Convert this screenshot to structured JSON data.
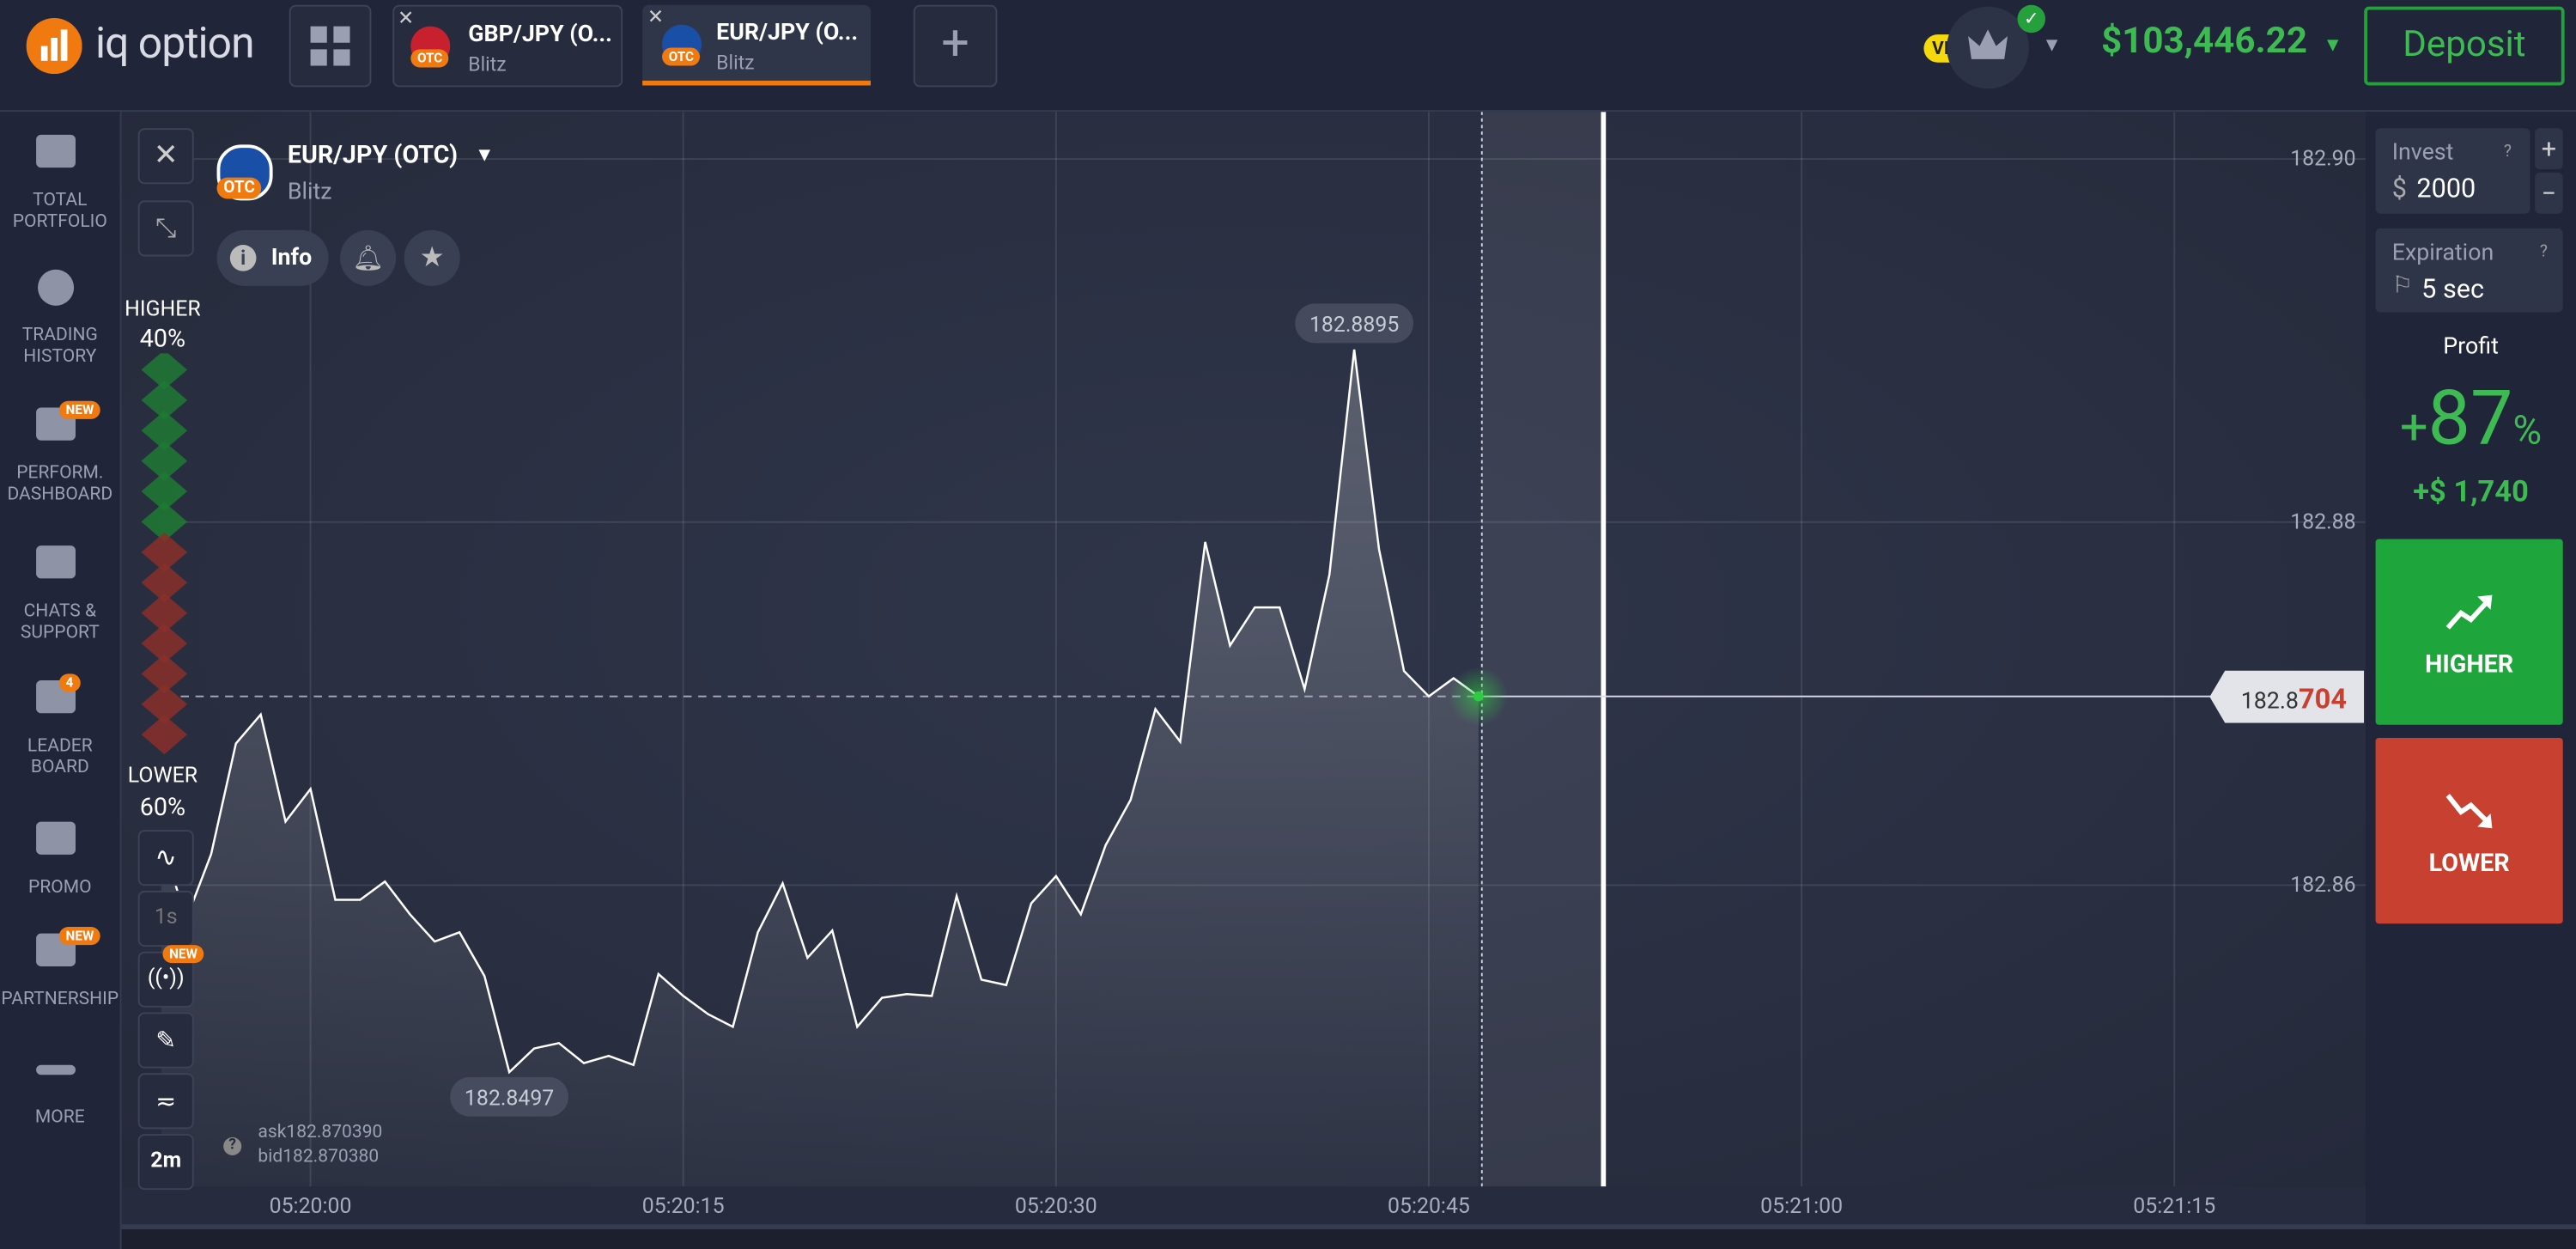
{
  "header": {
    "logo": "iq option",
    "tabs": [
      {
        "title": "GBP/JPY (O...",
        "subtitle": "Blitz",
        "badge": "OTC"
      },
      {
        "title": "EUR/JPY (O...",
        "subtitle": "Blitz",
        "badge": "OTC"
      }
    ],
    "vip": "VIP",
    "balance": "$103,446.22",
    "deposit": "Deposit"
  },
  "sidebar": [
    {
      "lines": [
        "TOTAL",
        "PORTFOLIO"
      ]
    },
    {
      "lines": [
        "TRADING",
        "HISTORY"
      ]
    },
    {
      "lines": [
        "PERFORM.",
        "DASHBOARD"
      ],
      "badge": "NEW"
    },
    {
      "lines": [
        "CHATS &",
        "SUPPORT"
      ]
    },
    {
      "lines": [
        "LEADER",
        "BOARD"
      ],
      "badge": "4"
    },
    {
      "lines": [
        "PROMO"
      ]
    },
    {
      "lines": [
        "PARTNERSHIP"
      ],
      "badge": "NEW"
    },
    {
      "lines": [
        "MORE"
      ]
    }
  ],
  "asset": {
    "name": "EUR/JPY (OTC)",
    "badge": "OTC",
    "type": "Blitz",
    "info": "Info"
  },
  "sentiment": {
    "higher_label": "HIGHER",
    "higher": "40%",
    "lower_label": "LOWER",
    "lower": "60%"
  },
  "tools": {
    "timeframe": "1s",
    "new": "NEW",
    "period": "2m"
  },
  "quotes": {
    "ask": "ask182.870390",
    "bid": "bid182.870380"
  },
  "chart": {
    "type": "line",
    "color": "#ffffff",
    "x": [
      19194,
      19195,
      19196,
      19197,
      19198,
      19199,
      19200,
      19201,
      19202,
      19203,
      19204,
      19205,
      19206,
      19207,
      19208,
      19209,
      19210,
      19211,
      19212,
      19213,
      19214,
      19215,
      19216,
      19217,
      19218,
      19219,
      19220,
      19221,
      19222,
      19223,
      19224,
      19225,
      19226,
      19227,
      19228,
      19229,
      19230,
      19231,
      19232,
      19233,
      19234,
      19235,
      19236,
      19237,
      19238,
      19239,
      19240,
      19241,
      19242,
      19243,
      19244,
      19245,
      19246,
      19247
    ],
    "values": [
      182.8626,
      182.8581,
      182.8617,
      182.8678,
      182.8694,
      182.8635,
      182.8653,
      182.8592,
      182.8592,
      182.8602,
      182.8584,
      182.8569,
      182.8574,
      182.855,
      182.8497,
      182.851,
      182.8513,
      182.8502,
      182.8506,
      182.8501,
      182.8551,
      182.8539,
      182.8529,
      182.8522,
      182.8574,
      182.8601,
      182.856,
      182.8575,
      182.8522,
      182.8538,
      182.854,
      182.8539,
      182.8594,
      182.8548,
      182.8545,
      182.859,
      182.8605,
      182.8584,
      182.8622,
      182.8647,
      182.8697,
      182.8679,
      182.8789,
      182.8732,
      182.8753,
      182.8753,
      182.8708,
      182.8771,
      182.8895,
      182.8785,
      182.8718,
      182.8704,
      182.8714,
      182.8704
    ],
    "xlim": [
      19192.4,
      19282.7
    ],
    "ylim": [
      182.8434,
      182.9026
    ],
    "xticks": [
      {
        "value": 19200,
        "label": "05:20:00"
      },
      {
        "value": 19215,
        "label": "05:20:15"
      },
      {
        "value": 19230,
        "label": "05:20:30"
      },
      {
        "value": 19245,
        "label": "05:20:45"
      },
      {
        "value": 19260,
        "label": "05:21:00"
      },
      {
        "value": 19275,
        "label": "05:21:15"
      }
    ],
    "yticks": [
      {
        "value": 182.9,
        "label": "182.90"
      },
      182.88,
      182.86
    ],
    "max_label": 182.8895,
    "min_label": 182.8497,
    "current_main": "182.8",
    "current_tail": "704"
  },
  "panel": {
    "invest_label": "Invest",
    "currency": "$",
    "invest": "2000",
    "expiration_label": "Expiration",
    "expiration": "5 sec",
    "profit_label": "Profit",
    "profit_sign": "+",
    "profit": "87",
    "profit_unit": "%",
    "payout": "+$ 1,740",
    "higher": "HIGHER",
    "lower": "LOWER"
  }
}
